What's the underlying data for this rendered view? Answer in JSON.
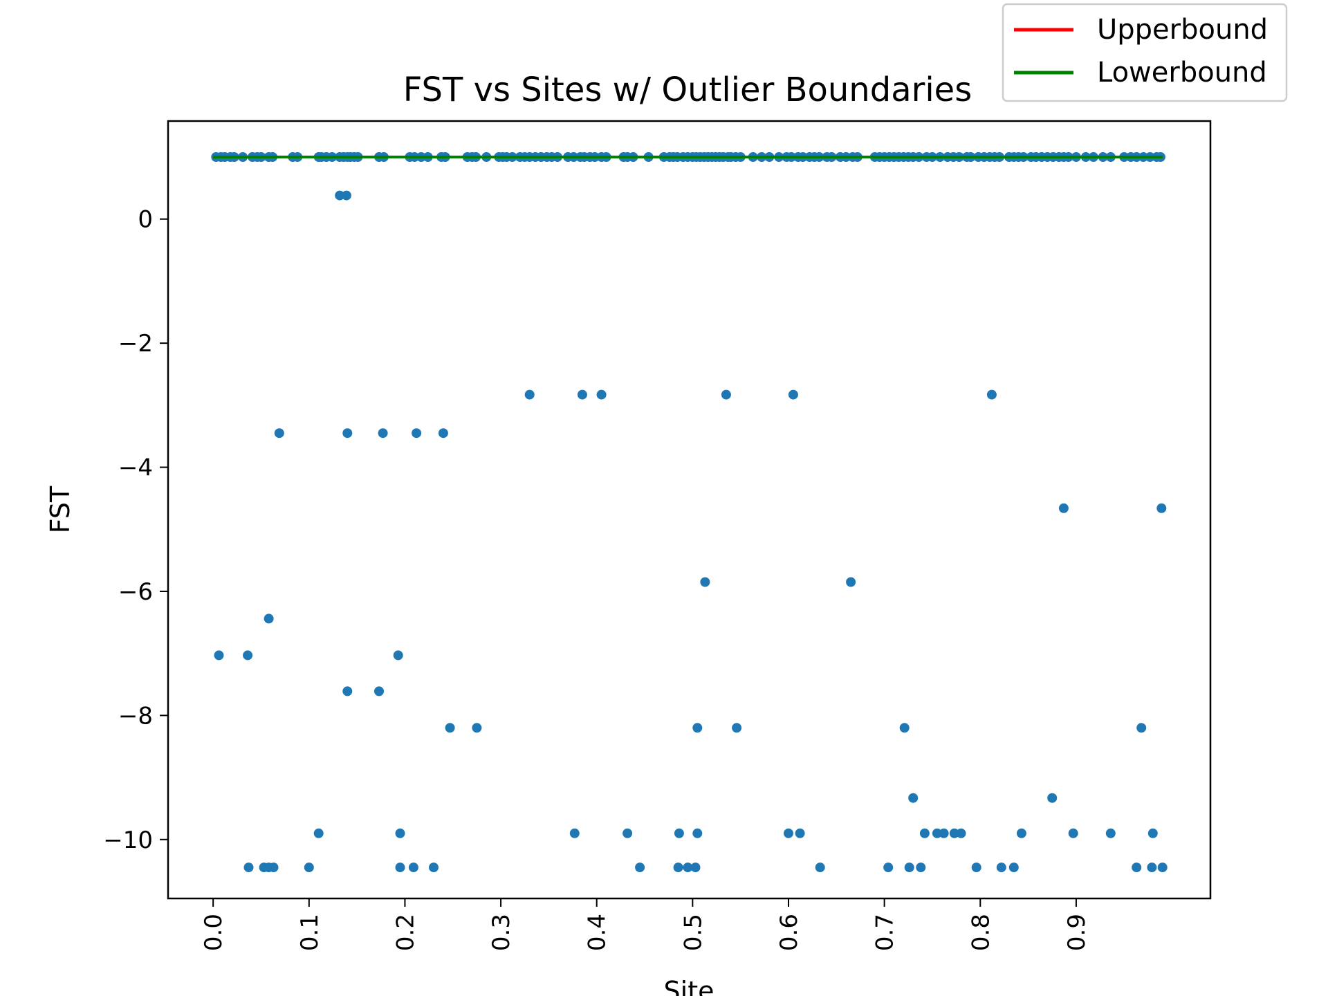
{
  "chart_data": {
    "type": "scatter",
    "title": "FST vs Sites w/ Outlier Boundaries",
    "xlabel": "Site",
    "ylabel": "FST",
    "xlim": [
      -0.047,
      1.04
    ],
    "ylim": [
      -10.95,
      1.58
    ],
    "xticks": [
      "0.0",
      "0.1",
      "0.2",
      "0.3",
      "0.4",
      "0.5",
      "0.6",
      "0.7",
      "0.8",
      "0.9"
    ],
    "yticks": [
      "0",
      "−2",
      "−4",
      "−6",
      "−8",
      "−10"
    ],
    "grid": false,
    "legend": {
      "placement": "upper-right, above axes"
    },
    "colors": {
      "points": "#1f77b4",
      "upperbound": "#ff0000",
      "lowerbound": "#008000"
    },
    "series": [
      {
        "values": [
          [
            0.003,
            1.0
          ],
          [
            0.008,
            1.0
          ],
          [
            0.012,
            1.0
          ],
          [
            0.018,
            1.0
          ],
          [
            0.022,
            1.0
          ],
          [
            0.031,
            1.0
          ],
          [
            0.041,
            1.0
          ],
          [
            0.046,
            1.0
          ],
          [
            0.05,
            1.0
          ],
          [
            0.058,
            1.0
          ],
          [
            0.062,
            1.0
          ],
          [
            0.083,
            1.0
          ],
          [
            0.088,
            1.0
          ],
          [
            0.11,
            1.0
          ],
          [
            0.113,
            1.0
          ],
          [
            0.118,
            1.0
          ],
          [
            0.124,
            1.0
          ],
          [
            0.132,
            1.0
          ],
          [
            0.136,
            1.0
          ],
          [
            0.14,
            1.0
          ],
          [
            0.143,
            1.0
          ],
          [
            0.147,
            1.0
          ],
          [
            0.151,
            1.0
          ],
          [
            0.173,
            1.0
          ],
          [
            0.178,
            1.0
          ],
          [
            0.205,
            1.0
          ],
          [
            0.21,
            1.0
          ],
          [
            0.217,
            1.0
          ],
          [
            0.224,
            1.0
          ],
          [
            0.238,
            1.0
          ],
          [
            0.242,
            1.0
          ],
          [
            0.265,
            1.0
          ],
          [
            0.27,
            1.0
          ],
          [
            0.274,
            1.0
          ],
          [
            0.285,
            1.0
          ],
          [
            0.298,
            1.0
          ],
          [
            0.302,
            1.0
          ],
          [
            0.306,
            1.0
          ],
          [
            0.312,
            1.0
          ],
          [
            0.32,
            1.0
          ],
          [
            0.325,
            1.0
          ],
          [
            0.33,
            1.0
          ],
          [
            0.336,
            1.0
          ],
          [
            0.342,
            1.0
          ],
          [
            0.348,
            1.0
          ],
          [
            0.353,
            1.0
          ],
          [
            0.359,
            1.0
          ],
          [
            0.37,
            1.0
          ],
          [
            0.376,
            1.0
          ],
          [
            0.383,
            1.0
          ],
          [
            0.387,
            1.0
          ],
          [
            0.393,
            1.0
          ],
          [
            0.398,
            1.0
          ],
          [
            0.405,
            1.0
          ],
          [
            0.41,
            1.0
          ],
          [
            0.428,
            1.0
          ],
          [
            0.432,
            1.0
          ],
          [
            0.438,
            1.0
          ],
          [
            0.454,
            1.0
          ],
          [
            0.47,
            1.0
          ],
          [
            0.476,
            1.0
          ],
          [
            0.48,
            1.0
          ],
          [
            0.484,
            1.0
          ],
          [
            0.49,
            1.0
          ],
          [
            0.495,
            1.0
          ],
          [
            0.5,
            1.0
          ],
          [
            0.504,
            1.0
          ],
          [
            0.508,
            1.0
          ],
          [
            0.512,
            1.0
          ],
          [
            0.516,
            1.0
          ],
          [
            0.52,
            1.0
          ],
          [
            0.524,
            1.0
          ],
          [
            0.528,
            1.0
          ],
          [
            0.532,
            1.0
          ],
          [
            0.537,
            1.0
          ],
          [
            0.54,
            1.0
          ],
          [
            0.545,
            1.0
          ],
          [
            0.55,
            1.0
          ],
          [
            0.563,
            1.0
          ],
          [
            0.572,
            1.0
          ],
          [
            0.58,
            1.0
          ],
          [
            0.59,
            1.0
          ],
          [
            0.598,
            1.0
          ],
          [
            0.603,
            1.0
          ],
          [
            0.61,
            1.0
          ],
          [
            0.615,
            1.0
          ],
          [
            0.622,
            1.0
          ],
          [
            0.627,
            1.0
          ],
          [
            0.632,
            1.0
          ],
          [
            0.64,
            1.0
          ],
          [
            0.645,
            1.0
          ],
          [
            0.654,
            1.0
          ],
          [
            0.66,
            1.0
          ],
          [
            0.667,
            1.0
          ],
          [
            0.672,
            1.0
          ],
          [
            0.69,
            1.0
          ],
          [
            0.695,
            1.0
          ],
          [
            0.7,
            1.0
          ],
          [
            0.705,
            1.0
          ],
          [
            0.71,
            1.0
          ],
          [
            0.715,
            1.0
          ],
          [
            0.72,
            1.0
          ],
          [
            0.725,
            1.0
          ],
          [
            0.73,
            1.0
          ],
          [
            0.736,
            1.0
          ],
          [
            0.744,
            1.0
          ],
          [
            0.75,
            1.0
          ],
          [
            0.758,
            1.0
          ],
          [
            0.766,
            1.0
          ],
          [
            0.772,
            1.0
          ],
          [
            0.778,
            1.0
          ],
          [
            0.786,
            1.0
          ],
          [
            0.79,
            1.0
          ],
          [
            0.798,
            1.0
          ],
          [
            0.804,
            1.0
          ],
          [
            0.81,
            1.0
          ],
          [
            0.815,
            1.0
          ],
          [
            0.82,
            1.0
          ],
          [
            0.83,
            1.0
          ],
          [
            0.835,
            1.0
          ],
          [
            0.84,
            1.0
          ],
          [
            0.845,
            1.0
          ],
          [
            0.853,
            1.0
          ],
          [
            0.858,
            1.0
          ],
          [
            0.864,
            1.0
          ],
          [
            0.87,
            1.0
          ],
          [
            0.876,
            1.0
          ],
          [
            0.882,
            1.0
          ],
          [
            0.887,
            1.0
          ],
          [
            0.892,
            1.0
          ],
          [
            0.9,
            1.0
          ],
          [
            0.91,
            1.0
          ],
          [
            0.918,
            1.0
          ],
          [
            0.928,
            1.0
          ],
          [
            0.936,
            1.0
          ],
          [
            0.95,
            1.0
          ],
          [
            0.957,
            1.0
          ],
          [
            0.963,
            1.0
          ],
          [
            0.97,
            1.0
          ],
          [
            0.977,
            1.0
          ],
          [
            0.984,
            1.0
          ],
          [
            0.988,
            1.0
          ],
          [
            0.132,
            0.38
          ],
          [
            0.139,
            0.38
          ],
          [
            0.33,
            -2.83
          ],
          [
            0.385,
            -2.83
          ],
          [
            0.405,
            -2.83
          ],
          [
            0.535,
            -2.83
          ],
          [
            0.605,
            -2.83
          ],
          [
            0.812,
            -2.83
          ],
          [
            0.069,
            -3.45
          ],
          [
            0.14,
            -3.45
          ],
          [
            0.177,
            -3.45
          ],
          [
            0.212,
            -3.45
          ],
          [
            0.24,
            -3.45
          ],
          [
            0.887,
            -4.66
          ],
          [
            0.989,
            -4.66
          ],
          [
            0.513,
            -5.85
          ],
          [
            0.665,
            -5.85
          ],
          [
            0.058,
            -6.44
          ],
          [
            0.006,
            -7.03
          ],
          [
            0.036,
            -7.03
          ],
          [
            0.193,
            -7.03
          ],
          [
            0.14,
            -7.61
          ],
          [
            0.173,
            -7.61
          ],
          [
            0.247,
            -8.2
          ],
          [
            0.275,
            -8.2
          ],
          [
            0.505,
            -8.2
          ],
          [
            0.546,
            -8.2
          ],
          [
            0.721,
            -8.2
          ],
          [
            0.968,
            -8.2
          ],
          [
            0.73,
            -9.33
          ],
          [
            0.875,
            -9.33
          ],
          [
            0.11,
            -9.9
          ],
          [
            0.195,
            -9.9
          ],
          [
            0.377,
            -9.9
          ],
          [
            0.432,
            -9.9
          ],
          [
            0.486,
            -9.9
          ],
          [
            0.505,
            -9.9
          ],
          [
            0.6,
            -9.9
          ],
          [
            0.612,
            -9.9
          ],
          [
            0.742,
            -9.9
          ],
          [
            0.755,
            -9.9
          ],
          [
            0.762,
            -9.9
          ],
          [
            0.773,
            -9.9
          ],
          [
            0.78,
            -9.9
          ],
          [
            0.843,
            -9.9
          ],
          [
            0.897,
            -9.9
          ],
          [
            0.936,
            -9.9
          ],
          [
            0.98,
            -9.9
          ],
          [
            0.037,
            -10.45
          ],
          [
            0.053,
            -10.45
          ],
          [
            0.058,
            -10.45
          ],
          [
            0.063,
            -10.45
          ],
          [
            0.1,
            -10.45
          ],
          [
            0.195,
            -10.45
          ],
          [
            0.209,
            -10.45
          ],
          [
            0.23,
            -10.45
          ],
          [
            0.445,
            -10.45
          ],
          [
            0.485,
            -10.45
          ],
          [
            0.495,
            -10.45
          ],
          [
            0.503,
            -10.45
          ],
          [
            0.633,
            -10.45
          ],
          [
            0.704,
            -10.45
          ],
          [
            0.726,
            -10.45
          ],
          [
            0.738,
            -10.45
          ],
          [
            0.796,
            -10.45
          ],
          [
            0.822,
            -10.45
          ],
          [
            0.835,
            -10.45
          ],
          [
            0.963,
            -10.45
          ],
          [
            0.979,
            -10.45
          ],
          [
            0.99,
            -10.45
          ]
        ]
      },
      {
        "name": "Upperbound",
        "type": "line",
        "x": [
          0.0,
          0.99
        ],
        "y": [
          1.0,
          1.0
        ]
      },
      {
        "name": "Lowerbound",
        "type": "line",
        "x": [
          0.0,
          0.99
        ],
        "y": [
          1.0,
          1.0
        ]
      }
    ]
  }
}
